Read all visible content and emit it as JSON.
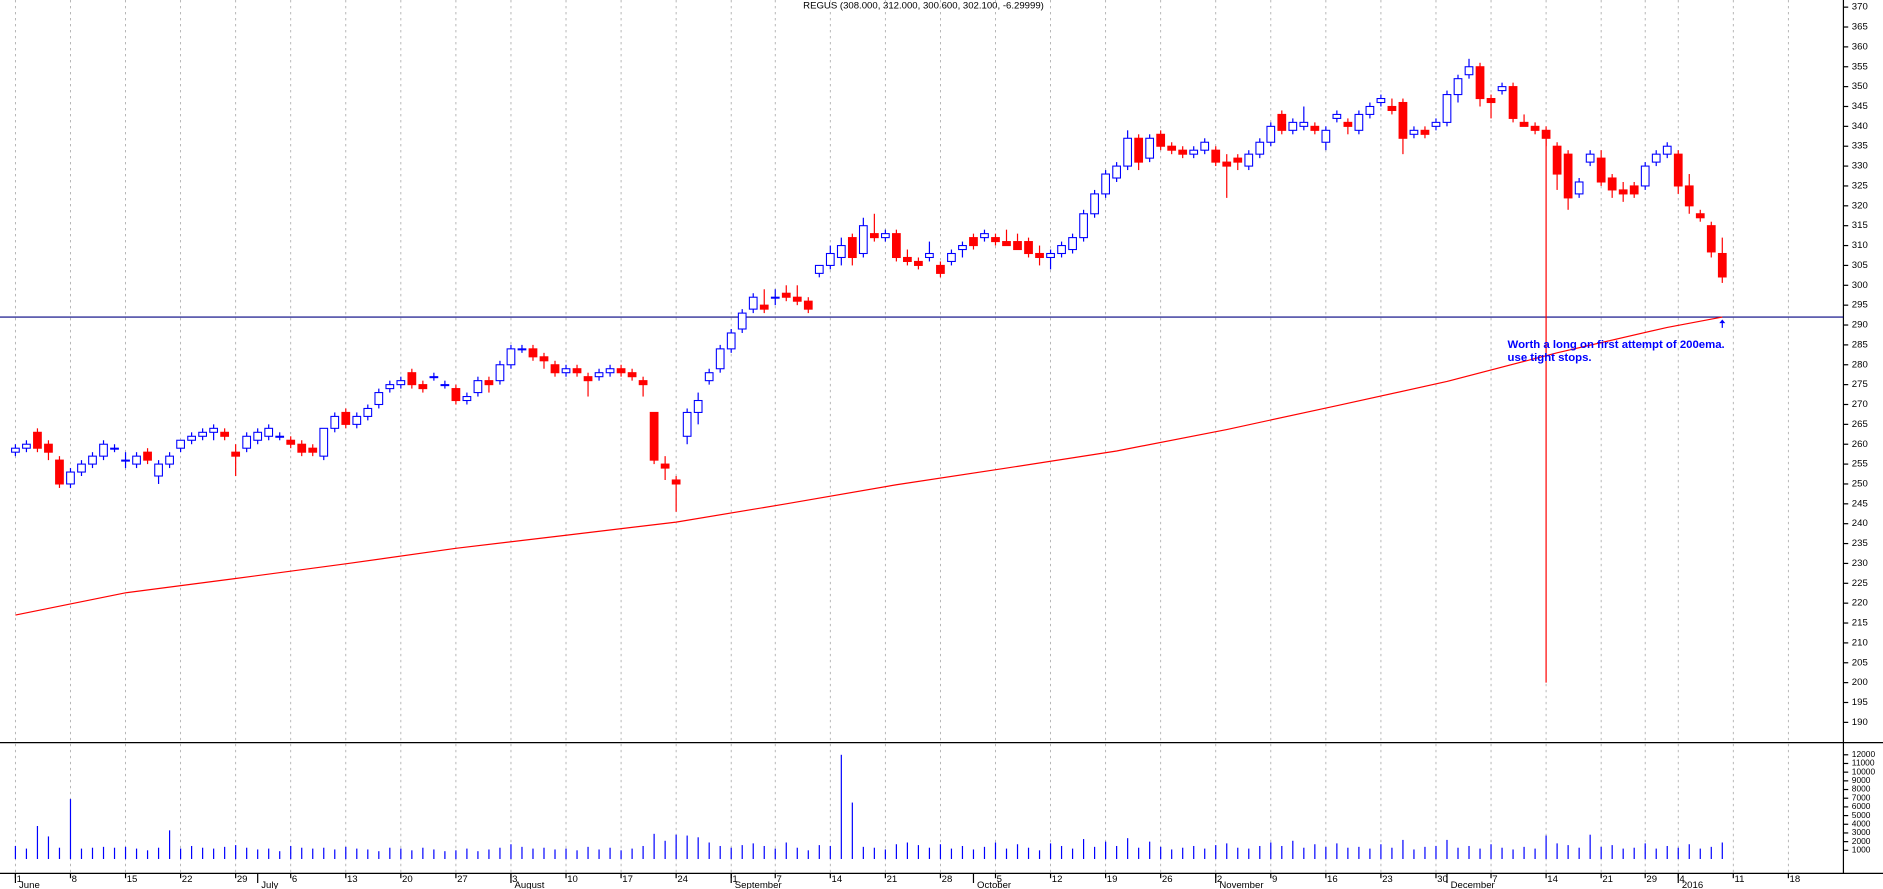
{
  "chart_data": {
    "type": "candlestick",
    "title": "REGUS (308.000, 312.000, 300.600, 302.100, -6.29999)",
    "up_color": "#0000ff",
    "down_color": "#ff0000",
    "ylim": [
      184.9,
      371.8
    ],
    "yticks": [
      190,
      195,
      200,
      205,
      210,
      215,
      220,
      225,
      230,
      235,
      240,
      245,
      250,
      255,
      260,
      265,
      270,
      275,
      280,
      285,
      290,
      295,
      300,
      305,
      310,
      315,
      320,
      325,
      330,
      335,
      340,
      345,
      350,
      355,
      360,
      365,
      370
    ],
    "xlim": [
      -1.4,
      166
    ],
    "xticks": [
      {
        "value": 0,
        "label": "1"
      },
      {
        "value": 5,
        "label": "8"
      },
      {
        "value": 10,
        "label": "15"
      },
      {
        "value": 15,
        "label": "22"
      },
      {
        "value": 20,
        "label": "29"
      },
      {
        "value": 25,
        "label": "6"
      },
      {
        "value": 30,
        "label": "13"
      },
      {
        "value": 35,
        "label": "20"
      },
      {
        "value": 40,
        "label": "27"
      },
      {
        "value": 45,
        "label": "3"
      },
      {
        "value": 50,
        "label": "10"
      },
      {
        "value": 55,
        "label": "17"
      },
      {
        "value": 60,
        "label": "24"
      },
      {
        "value": 65,
        "label": "1"
      },
      {
        "value": 69,
        "label": "7"
      },
      {
        "value": 74,
        "label": "14"
      },
      {
        "value": 79,
        "label": "21"
      },
      {
        "value": 84,
        "label": "28"
      },
      {
        "value": 89,
        "label": "5"
      },
      {
        "value": 94,
        "label": "12"
      },
      {
        "value": 99,
        "label": "19"
      },
      {
        "value": 104,
        "label": "26"
      },
      {
        "value": 109,
        "label": "2"
      },
      {
        "value": 114,
        "label": "9"
      },
      {
        "value": 119,
        "label": "16"
      },
      {
        "value": 124,
        "label": "23"
      },
      {
        "value": 129,
        "label": "30"
      },
      {
        "value": 134,
        "label": "7"
      },
      {
        "value": 139,
        "label": "14"
      },
      {
        "value": 144,
        "label": "21"
      },
      {
        "value": 148,
        "label": "29"
      },
      {
        "value": 151,
        "label": "4"
      },
      {
        "value": 156,
        "label": "11"
      },
      {
        "value": 161,
        "label": "18"
      }
    ],
    "month_ticks": [
      {
        "value": 0,
        "label": "June"
      },
      {
        "value": 22,
        "label": "July"
      },
      {
        "value": 45,
        "label": "August"
      },
      {
        "value": 65,
        "label": "September"
      },
      {
        "value": 87,
        "label": "October"
      },
      {
        "value": 109,
        "label": "November"
      },
      {
        "value": 130,
        "label": "December"
      },
      {
        "value": 151,
        "label": "2016"
      }
    ],
    "ohlc": [
      [
        258,
        260,
        257,
        259
      ],
      [
        259,
        261,
        258,
        260
      ],
      [
        263,
        264,
        258,
        259
      ],
      [
        260,
        261,
        256,
        258
      ],
      [
        256,
        257,
        249,
        250
      ],
      [
        250,
        254,
        249,
        253
      ],
      [
        253,
        256,
        252,
        255
      ],
      [
        255,
        258,
        254,
        257
      ],
      [
        257,
        261,
        256,
        260
      ],
      [
        259,
        260,
        258,
        259
      ],
      [
        256,
        258,
        254,
        256
      ],
      [
        255,
        258,
        254,
        257
      ],
      [
        258,
        259,
        255,
        256
      ],
      [
        252,
        256,
        250,
        255
      ],
      [
        255,
        258,
        254,
        257
      ],
      [
        259,
        261,
        258,
        261
      ],
      [
        261,
        263,
        260,
        262
      ],
      [
        262,
        264,
        261,
        263
      ],
      [
        263,
        265,
        261,
        264
      ],
      [
        263,
        264,
        261,
        262
      ],
      [
        258,
        260,
        252,
        257
      ],
      [
        259,
        263,
        258,
        262
      ],
      [
        261,
        264,
        260,
        263
      ],
      [
        262,
        265,
        261,
        264
      ],
      [
        262,
        263,
        261,
        262
      ],
      [
        261,
        262,
        259,
        260
      ],
      [
        260,
        261,
        257,
        258
      ],
      [
        259,
        260,
        257,
        258
      ],
      [
        257,
        264,
        256,
        264
      ],
      [
        264,
        268,
        263,
        267
      ],
      [
        268,
        269,
        264,
        265
      ],
      [
        265,
        268,
        264,
        267
      ],
      [
        267,
        270,
        266,
        269
      ],
      [
        270,
        274,
        269,
        273
      ],
      [
        274,
        276,
        273,
        275
      ],
      [
        275,
        277,
        274,
        276
      ],
      [
        278,
        279,
        274,
        275
      ],
      [
        275,
        276,
        273,
        274
      ],
      [
        277,
        278,
        276,
        277
      ],
      [
        275,
        276,
        274,
        275
      ],
      [
        274,
        275,
        270,
        271
      ],
      [
        271,
        273,
        270,
        272
      ],
      [
        273,
        277,
        272,
        276
      ],
      [
        276,
        277,
        273,
        275
      ],
      [
        276,
        281,
        275,
        280
      ],
      [
        280,
        285,
        279,
        284
      ],
      [
        284,
        285,
        283,
        284
      ],
      [
        284,
        285,
        281,
        282
      ],
      [
        282,
        283,
        279,
        281
      ],
      [
        280,
        281,
        277,
        278
      ],
      [
        278,
        280,
        277,
        279
      ],
      [
        279,
        280,
        277,
        278
      ],
      [
        277,
        278,
        272,
        276
      ],
      [
        277,
        279,
        276,
        278
      ],
      [
        278,
        280,
        277,
        279
      ],
      [
        279,
        280,
        277,
        278
      ],
      [
        278,
        279,
        276,
        277
      ],
      [
        276,
        277,
        272,
        275
      ],
      [
        268,
        268,
        255,
        256
      ],
      [
        255,
        257,
        251,
        254
      ],
      [
        251,
        252,
        243,
        250
      ],
      [
        262,
        269,
        260,
        268
      ],
      [
        268,
        273,
        265,
        271
      ],
      [
        276,
        279,
        275,
        278
      ],
      [
        279,
        285,
        278,
        284
      ],
      [
        284,
        289,
        283,
        288
      ],
      [
        289,
        294,
        288,
        293
      ],
      [
        294,
        298,
        293,
        297
      ],
      [
        295,
        299,
        293,
        294
      ],
      [
        297,
        299,
        295,
        297
      ],
      [
        298,
        300,
        296,
        297
      ],
      [
        297,
        300,
        295,
        296
      ],
      [
        296,
        297,
        293,
        294
      ],
      [
        303,
        305,
        302,
        305
      ],
      [
        305,
        310,
        304,
        308
      ],
      [
        307,
        312,
        305,
        310
      ],
      [
        312,
        313,
        305,
        307
      ],
      [
        308,
        317,
        307,
        315
      ],
      [
        313,
        318,
        311,
        312
      ],
      [
        312,
        314,
        311,
        313
      ],
      [
        313,
        314,
        306,
        307
      ],
      [
        307,
        309,
        305,
        306
      ],
      [
        306,
        307,
        304,
        305
      ],
      [
        307,
        311,
        306,
        308
      ],
      [
        305,
        306,
        302,
        303
      ],
      [
        306,
        309,
        305,
        308
      ],
      [
        309,
        311,
        307,
        310
      ],
      [
        312,
        313,
        309,
        310
      ],
      [
        312,
        314,
        311,
        313
      ],
      [
        312,
        313,
        310,
        311
      ],
      [
        311,
        314,
        310,
        310
      ],
      [
        311,
        313,
        309,
        309
      ],
      [
        311,
        312,
        307,
        308
      ],
      [
        308,
        310,
        305,
        307
      ],
      [
        307,
        309,
        304,
        308
      ],
      [
        308,
        311,
        307,
        310
      ],
      [
        309,
        313,
        308,
        312
      ],
      [
        312,
        319,
        311,
        318
      ],
      [
        318,
        324,
        317,
        323
      ],
      [
        323,
        329,
        322,
        328
      ],
      [
        327,
        331,
        326,
        330
      ],
      [
        330,
        339,
        329,
        337
      ],
      [
        337,
        338,
        329,
        331
      ],
      [
        332,
        338,
        331,
        337
      ],
      [
        338,
        339,
        334,
        335
      ],
      [
        335,
        336,
        333,
        334
      ],
      [
        334,
        335,
        332,
        333
      ],
      [
        333,
        335,
        332,
        334
      ],
      [
        334,
        337,
        333,
        336
      ],
      [
        334,
        335,
        330,
        331
      ],
      [
        331,
        333,
        322,
        330
      ],
      [
        332,
        333,
        329,
        331
      ],
      [
        330,
        334,
        329,
        333
      ],
      [
        333,
        337,
        332,
        336
      ],
      [
        336,
        341,
        335,
        340
      ],
      [
        343,
        344,
        338,
        339
      ],
      [
        339,
        342,
        338,
        341
      ],
      [
        340,
        345,
        339,
        341
      ],
      [
        340,
        341,
        338,
        339
      ],
      [
        336,
        340,
        334,
        339
      ],
      [
        342,
        344,
        341,
        343
      ],
      [
        341,
        342,
        338,
        340
      ],
      [
        339,
        344,
        338,
        343
      ],
      [
        343,
        346,
        342,
        345
      ],
      [
        346,
        348,
        345,
        347
      ],
      [
        345,
        347,
        343,
        344
      ],
      [
        346,
        347,
        333,
        337
      ],
      [
        338,
        340,
        337,
        339
      ],
      [
        339,
        340,
        337,
        338
      ],
      [
        340,
        342,
        339,
        341
      ],
      [
        341,
        349,
        340,
        348
      ],
      [
        348,
        353,
        346,
        352
      ],
      [
        353,
        357,
        352,
        355
      ],
      [
        355,
        356,
        345,
        347
      ],
      [
        347,
        348,
        342,
        346
      ],
      [
        349,
        351,
        348,
        350
      ],
      [
        350,
        351,
        341,
        342
      ],
      [
        341,
        343,
        340,
        340
      ],
      [
        340,
        341,
        338,
        339
      ],
      [
        339,
        340,
        335,
        337
      ],
      [
        335,
        336,
        324,
        328
      ],
      [
        333,
        334,
        319,
        322
      ],
      [
        323,
        327,
        322,
        326
      ],
      [
        331,
        334,
        330,
        333
      ],
      [
        332,
        334,
        325,
        326
      ],
      [
        327,
        328,
        322,
        324
      ],
      [
        324,
        326,
        321,
        323
      ],
      [
        325,
        326,
        322,
        323
      ],
      [
        325,
        331,
        324,
        330
      ],
      [
        331,
        334,
        330,
        333
      ],
      [
        333,
        336,
        332,
        335
      ],
      [
        333,
        334,
        323,
        325
      ],
      [
        325,
        328,
        318,
        320
      ],
      [
        318,
        319,
        316,
        317
      ],
      [
        315,
        316,
        307,
        308.4
      ],
      [
        308,
        312,
        300.6,
        302.1
      ]
    ],
    "volume": [
      1500,
      1200,
      3800,
      2600,
      1300,
      6900,
      1200,
      1300,
      1400,
      1300,
      1400,
      1200,
      1000,
      1300,
      3300,
      1200,
      1500,
      1300,
      1200,
      1400,
      1600,
      1300,
      1100,
      1200,
      900,
      1500,
      1300,
      1200,
      1300,
      1100,
      1400,
      1200,
      1100,
      900,
      1300,
      1200,
      1000,
      1300,
      1100,
      900,
      1000,
      1200,
      900,
      1100,
      1300,
      1700,
      1400,
      1200,
      1300,
      1100,
      1200,
      1000,
      1400,
      1100,
      1300,
      1000,
      1200,
      1500,
      2900,
      2100,
      2800,
      2700,
      2500,
      1900,
      1500,
      1300,
      1600,
      1800,
      1500,
      1200,
      1900,
      1300,
      1000,
      1600,
      1500,
      12000,
      6500,
      1400,
      1300,
      1100,
      1700,
      1900,
      1600,
      1300,
      1700,
      1200,
      1500,
      1100,
      1400,
      1900,
      1200,
      1700,
      1300,
      1000,
      1800,
      1500,
      1200,
      2300,
      1400,
      2000,
      1500,
      2400,
      1300,
      2000,
      1400,
      1100,
      1300,
      1500,
      1200,
      1600,
      1800,
      1300,
      1200,
      1500,
      1900,
      1500,
      2100,
      1300,
      1700,
      1400,
      1800,
      1300,
      1400,
      1200,
      1700,
      1300,
      2200,
      1100,
      1400,
      1500,
      2200,
      1300,
      1500,
      1200,
      1700,
      1300,
      1100,
      1400,
      1200,
      2700,
      1800,
      1600,
      1300,
      2800,
      1400,
      1600,
      1200,
      1300,
      1800,
      1200,
      1500,
      1300,
      1700,
      1200,
      1400,
      1900
    ],
    "volume_color": "#0000ff",
    "vlim": [
      0,
      13400
    ],
    "vticks": [
      1000,
      2000,
      3000,
      4000,
      5000,
      6000,
      7000,
      8000,
      9000,
      10000,
      11000,
      12000
    ],
    "ema": {
      "color": "#ff0000",
      "x": [
        0,
        10,
        20,
        30,
        40,
        50,
        60,
        70,
        80,
        90,
        100,
        110,
        120,
        130,
        140,
        150,
        155
      ],
      "values": [
        217,
        222.6,
        226.2,
        229.9,
        233.8,
        237.1,
        240.4,
        245,
        249.8,
        254,
        258.3,
        263.7,
        269.7,
        275.8,
        283,
        289.4,
        292
      ]
    },
    "hline": {
      "value": 292,
      "color": "#000080"
    },
    "vline": {
      "x": 139,
      "from": 337,
      "to": 200,
      "color": "#ff0000"
    },
    "annotation": {
      "lines": [
        "Worth a long on first attempt of 200ema.",
        "use tight stops."
      ],
      "x": 135.5,
      "y": 285,
      "color": "#0000ff"
    }
  }
}
